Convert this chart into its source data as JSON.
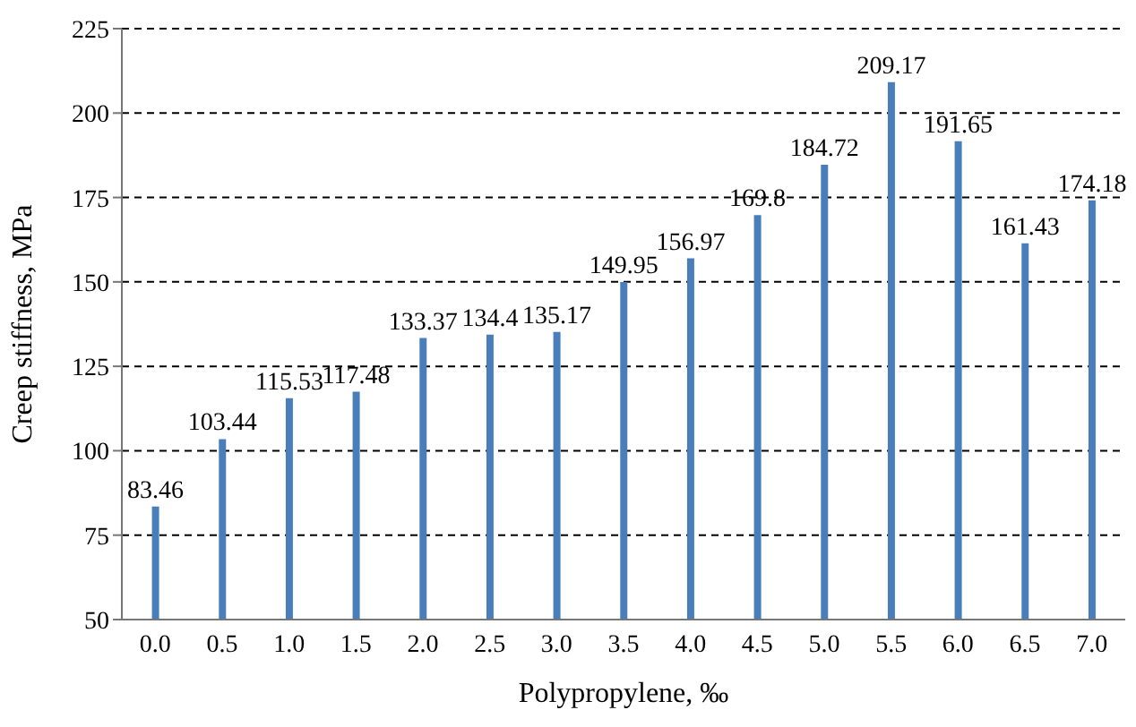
{
  "chart_data": {
    "type": "bar",
    "xlabel": "Polypropylene, ‰",
    "ylabel": "Creep stiffness, MPa",
    "categories": [
      "0.0",
      "0.5",
      "1.0",
      "1.5",
      "2.0",
      "2.5",
      "3.0",
      "3.5",
      "4.0",
      "4.5",
      "5.0",
      "5.5",
      "6.0",
      "6.5",
      "7.0"
    ],
    "values": [
      83.46,
      103.44,
      115.53,
      117.48,
      133.37,
      134.4,
      135.17,
      149.95,
      156.97,
      169.8,
      184.72,
      209.17,
      191.65,
      161.43,
      174.18
    ],
    "color": "#4a7ebb",
    "ylim": [
      50,
      225
    ],
    "yticks": [
      50,
      75,
      100,
      125,
      150,
      175,
      200,
      225
    ],
    "grid": "y",
    "data_labels": true,
    "legend": false
  }
}
